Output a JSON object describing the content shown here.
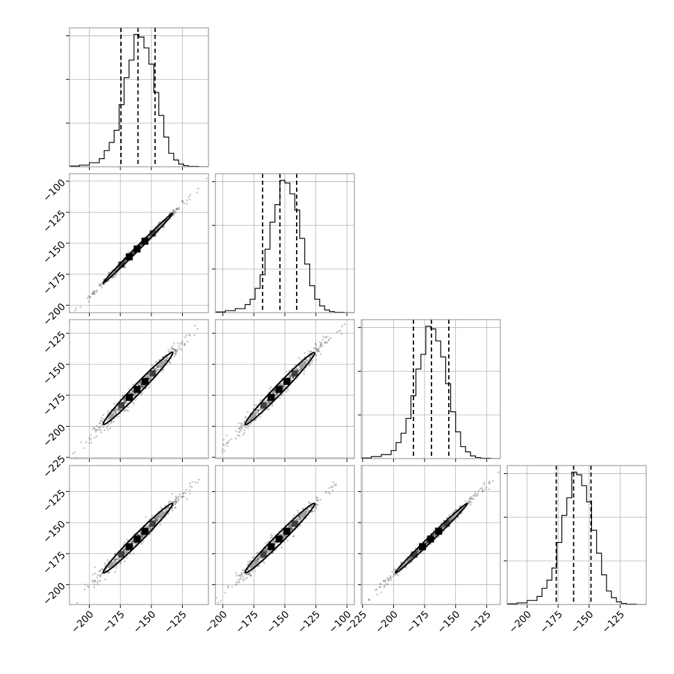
{
  "chart_data": {
    "type": "corner",
    "n_params": 4,
    "grid": true,
    "marginals": [
      {
        "param_index": 0,
        "xlim": [
          -216,
          -104
        ],
        "quantiles": [
          -174.5,
          -160.8,
          -147.0
        ],
        "bin_edges": [
          -216,
          -208,
          -200,
          -192,
          -188,
          -184,
          -180,
          -176,
          -172,
          -168,
          -164,
          -160,
          -156,
          -152,
          -148,
          -144,
          -140,
          -136,
          -132,
          -128,
          -124,
          -120,
          -112,
          -104
        ],
        "counts": [
          0.005,
          0.012,
          0.03,
          0.06,
          0.12,
          0.18,
          0.27,
          0.46,
          0.66,
          0.79,
          0.98,
          0.96,
          0.88,
          0.76,
          0.55,
          0.38,
          0.22,
          0.1,
          0.05,
          0.02,
          0.008,
          0.003,
          0.0
        ]
      },
      {
        "param_index": 1,
        "xlim": [
          -206,
          -94
        ],
        "quantiles": [
          -168.0,
          -154.0,
          -140.5
        ],
        "bin_edges": [
          -206,
          -198,
          -190,
          -182,
          -178,
          -174,
          -170,
          -166,
          -162,
          -158,
          -154,
          -150,
          -146,
          -142,
          -138,
          -134,
          -130,
          -126,
          -122,
          -118,
          -114,
          -110,
          -102,
          -94
        ],
        "counts": [
          0.005,
          0.015,
          0.03,
          0.06,
          0.1,
          0.18,
          0.28,
          0.47,
          0.67,
          0.8,
          0.98,
          0.96,
          0.88,
          0.76,
          0.55,
          0.36,
          0.2,
          0.1,
          0.05,
          0.02,
          0.008,
          0.003,
          0.0
        ]
      },
      {
        "param_index": 2,
        "xlim": [
          -226,
          -114
        ],
        "quantiles": [
          -184.0,
          -169.5,
          -155.5
        ],
        "bin_edges": [
          -226,
          -218,
          -210,
          -202,
          -198,
          -194,
          -190,
          -186,
          -182,
          -178,
          -174,
          -170,
          -166,
          -162,
          -158,
          -154,
          -150,
          -146,
          -142,
          -138,
          -134,
          -130,
          -122,
          -114
        ],
        "counts": [
          0.005,
          0.015,
          0.03,
          0.06,
          0.12,
          0.19,
          0.3,
          0.47,
          0.67,
          0.78,
          0.99,
          0.97,
          0.88,
          0.76,
          0.56,
          0.35,
          0.2,
          0.09,
          0.05,
          0.02,
          0.008,
          0.003,
          0.0
        ]
      },
      {
        "param_index": 3,
        "xlim": [
          -216,
          -104
        ],
        "quantiles": [
          -176.5,
          -162.5,
          -148.5
        ],
        "bin_edges": [
          -216,
          -208,
          -200,
          -192,
          -188,
          -184,
          -180,
          -176,
          -172,
          -168,
          -164,
          -160,
          -156,
          -152,
          -148,
          -144,
          -140,
          -136,
          -132,
          -128,
          -124,
          -120,
          -112,
          -104
        ],
        "counts": [
          0.005,
          0.012,
          0.03,
          0.06,
          0.12,
          0.18,
          0.27,
          0.46,
          0.66,
          0.79,
          0.98,
          0.96,
          0.88,
          0.76,
          0.55,
          0.38,
          0.22,
          0.1,
          0.05,
          0.02,
          0.008,
          0.003,
          0.0
        ]
      }
    ],
    "axis_ranges": [
      [
        -216,
        -104
      ],
      [
        -206,
        -94
      ],
      [
        -226,
        -114
      ],
      [
        -216,
        -104
      ]
    ],
    "axis_ticks": [
      [
        -200,
        -175,
        -150,
        -125
      ],
      [
        -200,
        -175,
        -150,
        -125,
        -100
      ],
      [
        -225,
        -200,
        -175,
        -150,
        -125
      ],
      [
        -200,
        -175,
        -150,
        -125
      ]
    ],
    "pairs": [
      {
        "x_param": 0,
        "y_param": 1,
        "means": [
          -160.8,
          -154.0
        ],
        "sd": [
          14.0,
          14.0
        ],
        "rho": 0.997
      },
      {
        "x_param": 0,
        "y_param": 2,
        "means": [
          -160.8,
          -169.5
        ],
        "sd": [
          14.0,
          14.5
        ],
        "rho": 0.985
      },
      {
        "x_param": 1,
        "y_param": 2,
        "means": [
          -154.0,
          -169.5
        ],
        "sd": [
          14.0,
          14.5
        ],
        "rho": 0.985
      },
      {
        "x_param": 0,
        "y_param": 3,
        "means": [
          -160.8,
          -162.5
        ],
        "sd": [
          14.0,
          14.0
        ],
        "rho": 0.985
      },
      {
        "x_param": 1,
        "y_param": 3,
        "means": [
          -154.0,
          -162.5
        ],
        "sd": [
          14.0,
          14.0
        ],
        "rho": 0.985
      },
      {
        "x_param": 2,
        "y_param": 3,
        "means": [
          -169.5,
          -162.5
        ],
        "sd": [
          14.5,
          14.0
        ],
        "rho": 0.995
      }
    ],
    "bottom_tick_labels": [
      [
        "−200",
        "−175",
        "−150",
        "−125"
      ],
      [
        "−200",
        "−175",
        "−150",
        "−125",
        "−100"
      ],
      [
        "−225",
        "−200",
        "−175",
        "−150",
        "−125"
      ],
      [
        "−200",
        "−175",
        "−150",
        "−125"
      ]
    ],
    "left_tick_labels": [
      [],
      [
        "−100",
        "−125",
        "−150",
        "−175",
        "−200"
      ],
      [
        "−125",
        "−150",
        "−175",
        "−200",
        "−225"
      ],
      [
        "−125",
        "−150",
        "−175",
        "−200"
      ]
    ],
    "colors": {
      "line": "#000000",
      "frame": "#888888",
      "grid": "#b0b0b0",
      "contour_inner_fill": "#000000",
      "contour_outer_fill": "#a0a0a0"
    }
  }
}
